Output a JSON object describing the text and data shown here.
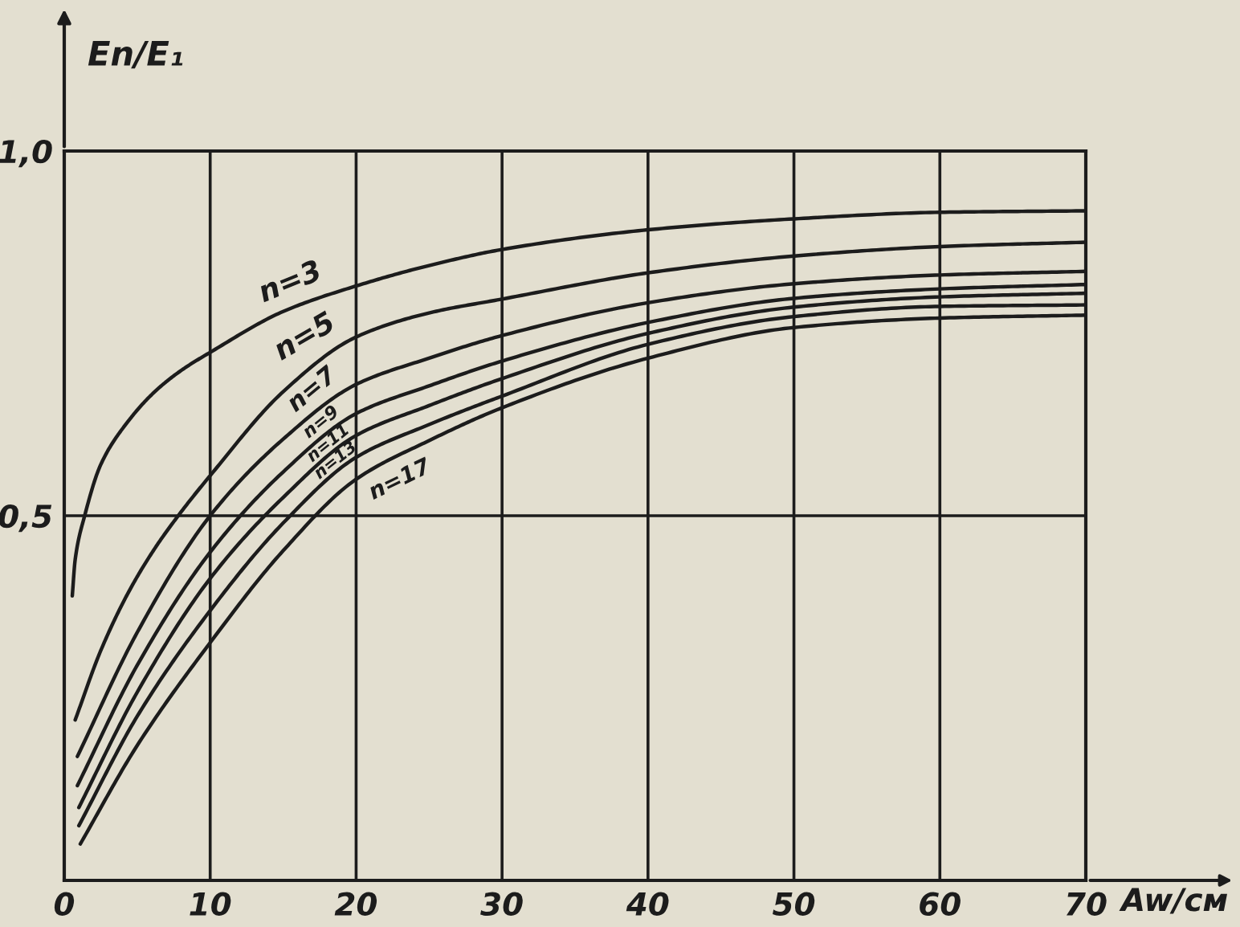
{
  "chart_data": {
    "type": "line",
    "xlabel": "Aw/см",
    "ylabel": "En/E₁",
    "xlim": [
      0,
      70
    ],
    "ylim": [
      0,
      1.0
    ],
    "xticks": [
      0,
      10,
      20,
      30,
      40,
      50,
      60,
      70
    ],
    "yticks": [
      {
        "value": 0.5,
        "label": "0,5"
      },
      {
        "value": 1.0,
        "label": "1,0"
      }
    ],
    "grid": true,
    "series": [
      {
        "name": "n=3",
        "color": "#1c1c1c",
        "x": [
          0.55,
          0.75,
          1.4,
          2.5,
          4.4,
          6.2,
          8,
          10,
          15,
          20,
          25,
          30,
          40,
          50,
          60,
          70
        ],
        "values": [
          0.39,
          0.44,
          0.5,
          0.57,
          0.63,
          0.67,
          0.699,
          0.724,
          0.78,
          0.815,
          0.843,
          0.865,
          0.892,
          0.907,
          0.916,
          0.918
        ]
      },
      {
        "name": "n=5",
        "color": "#1c1c1c",
        "x": [
          0.75,
          2.5,
          4.4,
          6.2,
          8,
          10,
          15,
          20,
          25,
          30,
          40,
          50,
          60,
          70
        ],
        "values": [
          0.22,
          0.315,
          0.395,
          0.455,
          0.505,
          0.555,
          0.67,
          0.745,
          0.778,
          0.797,
          0.833,
          0.856,
          0.869,
          0.875
        ]
      },
      {
        "name": "n=7",
        "color": "#1c1c1c",
        "x": [
          0.9,
          5,
          10,
          15,
          20,
          25,
          30,
          40,
          50,
          60,
          70
        ],
        "values": [
          0.17,
          0.34,
          0.5,
          0.605,
          0.68,
          0.716,
          0.747,
          0.792,
          0.818,
          0.83,
          0.835
        ]
      },
      {
        "name": "n=9",
        "color": "#1c1c1c",
        "x": [
          0.9,
          5,
          10,
          15,
          20,
          25,
          30,
          40,
          50,
          60,
          70
        ],
        "values": [
          0.13,
          0.295,
          0.45,
          0.56,
          0.64,
          0.678,
          0.712,
          0.765,
          0.798,
          0.811,
          0.817
        ]
      },
      {
        "name": "n=11",
        "color": "#1c1c1c",
        "x": [
          1.0,
          5,
          10,
          15,
          20,
          25,
          30,
          40,
          50,
          60,
          70
        ],
        "values": [
          0.1,
          0.258,
          0.414,
          0.525,
          0.61,
          0.651,
          0.688,
          0.75,
          0.786,
          0.8,
          0.805
        ]
      },
      {
        "name": "n=13",
        "color": "#1c1c1c",
        "x": [
          1.0,
          5,
          10,
          15,
          20,
          25,
          30,
          40,
          50,
          60,
          70
        ],
        "values": [
          0.075,
          0.225,
          0.37,
          0.49,
          0.58,
          0.625,
          0.664,
          0.735,
          0.773,
          0.787,
          0.789
        ]
      },
      {
        "name": "n=17",
        "color": "#1c1c1c",
        "x": [
          1.1,
          5,
          10,
          15,
          20,
          25,
          30,
          40,
          50,
          60,
          70
        ],
        "values": [
          0.05,
          0.185,
          0.326,
          0.452,
          0.55,
          0.603,
          0.648,
          0.716,
          0.758,
          0.771,
          0.775
        ]
      }
    ]
  }
}
